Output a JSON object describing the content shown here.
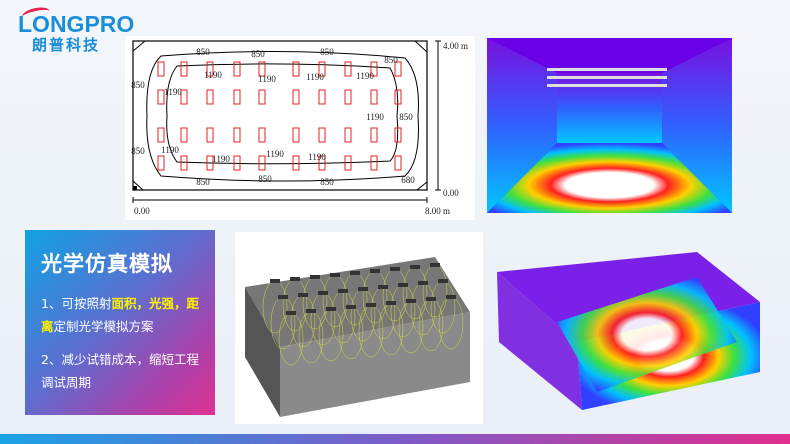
{
  "logo": {
    "brand": "LONGPRO",
    "registered": "®",
    "chinese": "朗普科技"
  },
  "contour_plot": {
    "labels_outer": [
      "850",
      "850",
      "850",
      "850",
      "850",
      "850",
      "850",
      "850",
      "850",
      "850"
    ],
    "labels_inner": [
      "1190",
      "1190",
      "1190",
      "1190",
      "1190",
      "1190",
      "1190",
      "1190",
      "1190",
      "1190"
    ],
    "label_corner": "680",
    "y_axis_top": "4.00 m",
    "y_axis_bottom": "0.00",
    "x_axis_left": "0.00",
    "x_axis_right": "8.00 m",
    "luminaire_grid": {
      "columns": 10,
      "rows": 4
    }
  },
  "panel": {
    "title": "光学仿真模拟",
    "item1_prefix": "1、可按照射",
    "item1_hl1": "面积，光强，",
    "item1_hl2": "距离",
    "item1_suffix": "定制光学模拟方案",
    "item2": "2、减少试错成本，缩短工程调试周期",
    "highlight_color": "#fff200"
  },
  "colors": {
    "brand": "#1a8fd8",
    "accent_red": "#e2264d",
    "gradient_start": "#11a3e3",
    "gradient_end": "#e03290"
  }
}
